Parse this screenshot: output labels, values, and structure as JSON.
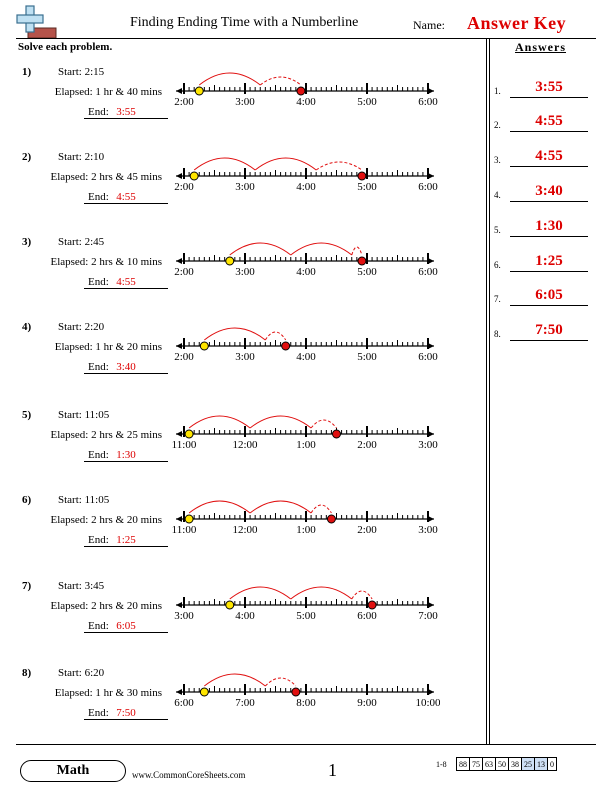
{
  "header": {
    "title": "Finding Ending Time with a Numberline",
    "name_label": "Name:",
    "answer_key": "Answer Key"
  },
  "instructions": "Solve each problem.",
  "answers_panel": {
    "heading": "Answers",
    "items": [
      {
        "num": "1.",
        "value": "3:55"
      },
      {
        "num": "2.",
        "value": "4:55"
      },
      {
        "num": "3.",
        "value": "4:55"
      },
      {
        "num": "4.",
        "value": "3:40"
      },
      {
        "num": "5.",
        "value": "1:30"
      },
      {
        "num": "6.",
        "value": "1:25"
      },
      {
        "num": "7.",
        "value": "6:05"
      },
      {
        "num": "8.",
        "value": "7:50"
      }
    ]
  },
  "problems": [
    {
      "num": "1)",
      "start": "Start: 2:15",
      "elapsed": "Elapsed: 1 hr & 40 mins",
      "end_label": "End:",
      "end_value": "3:55",
      "hour_labels": [
        "2:00",
        "3:00",
        "4:00",
        "5:00",
        "6:00"
      ],
      "start_minutes": 15,
      "end_minutes": 115
    },
    {
      "num": "2)",
      "start": "Start: 2:10",
      "elapsed": "Elapsed: 2 hrs & 45 mins",
      "end_label": "End:",
      "end_value": "4:55",
      "hour_labels": [
        "2:00",
        "3:00",
        "4:00",
        "5:00",
        "6:00"
      ],
      "start_minutes": 10,
      "end_minutes": 175
    },
    {
      "num": "3)",
      "start": "Start: 2:45",
      "elapsed": "Elapsed: 2 hrs & 10 mins",
      "end_label": "End:",
      "end_value": "4:55",
      "hour_labels": [
        "2:00",
        "3:00",
        "4:00",
        "5:00",
        "6:00"
      ],
      "start_minutes": 45,
      "end_minutes": 175
    },
    {
      "num": "4)",
      "start": "Start: 2:20",
      "elapsed": "Elapsed: 1 hr & 20 mins",
      "end_label": "End:",
      "end_value": "3:40",
      "hour_labels": [
        "2:00",
        "3:00",
        "4:00",
        "5:00",
        "6:00"
      ],
      "start_minutes": 20,
      "end_minutes": 100
    },
    {
      "num": "5)",
      "start": "Start: 11:05",
      "elapsed": "Elapsed: 2 hrs & 25 mins",
      "end_label": "End:",
      "end_value": "1:30",
      "hour_labels": [
        "11:00",
        "12:00",
        "1:00",
        "2:00",
        "3:00"
      ],
      "start_minutes": 5,
      "end_minutes": 150
    },
    {
      "num": "6)",
      "start": "Start: 11:05",
      "elapsed": "Elapsed: 2 hrs & 20 mins",
      "end_label": "End:",
      "end_value": "1:25",
      "hour_labels": [
        "11:00",
        "12:00",
        "1:00",
        "2:00",
        "3:00"
      ],
      "start_minutes": 5,
      "end_minutes": 145
    },
    {
      "num": "7)",
      "start": "Start: 3:45",
      "elapsed": "Elapsed: 2 hrs & 20 mins",
      "end_label": "End:",
      "end_value": "6:05",
      "hour_labels": [
        "3:00",
        "4:00",
        "5:00",
        "6:00",
        "7:00"
      ],
      "start_minutes": 45,
      "end_minutes": 185
    },
    {
      "num": "8)",
      "start": "Start: 6:20",
      "elapsed": "Elapsed: 1 hr & 30 mins",
      "end_label": "End:",
      "end_value": "7:50",
      "hour_labels": [
        "6:00",
        "7:00",
        "8:00",
        "9:00",
        "10:00"
      ],
      "start_minutes": 20,
      "end_minutes": 110
    }
  ],
  "footer": {
    "subject": "Math",
    "website": "www.CommonCoreSheets.com",
    "page_number": "1",
    "score_label": "1-8",
    "scores": [
      "88",
      "75",
      "63",
      "50",
      "38",
      "25",
      "13",
      "0"
    ]
  },
  "colors": {
    "answer_red": "#dd0000",
    "start_dot": "#ffe600",
    "end_dot": "#e01010",
    "score_highlight": "#cfe0f5"
  }
}
